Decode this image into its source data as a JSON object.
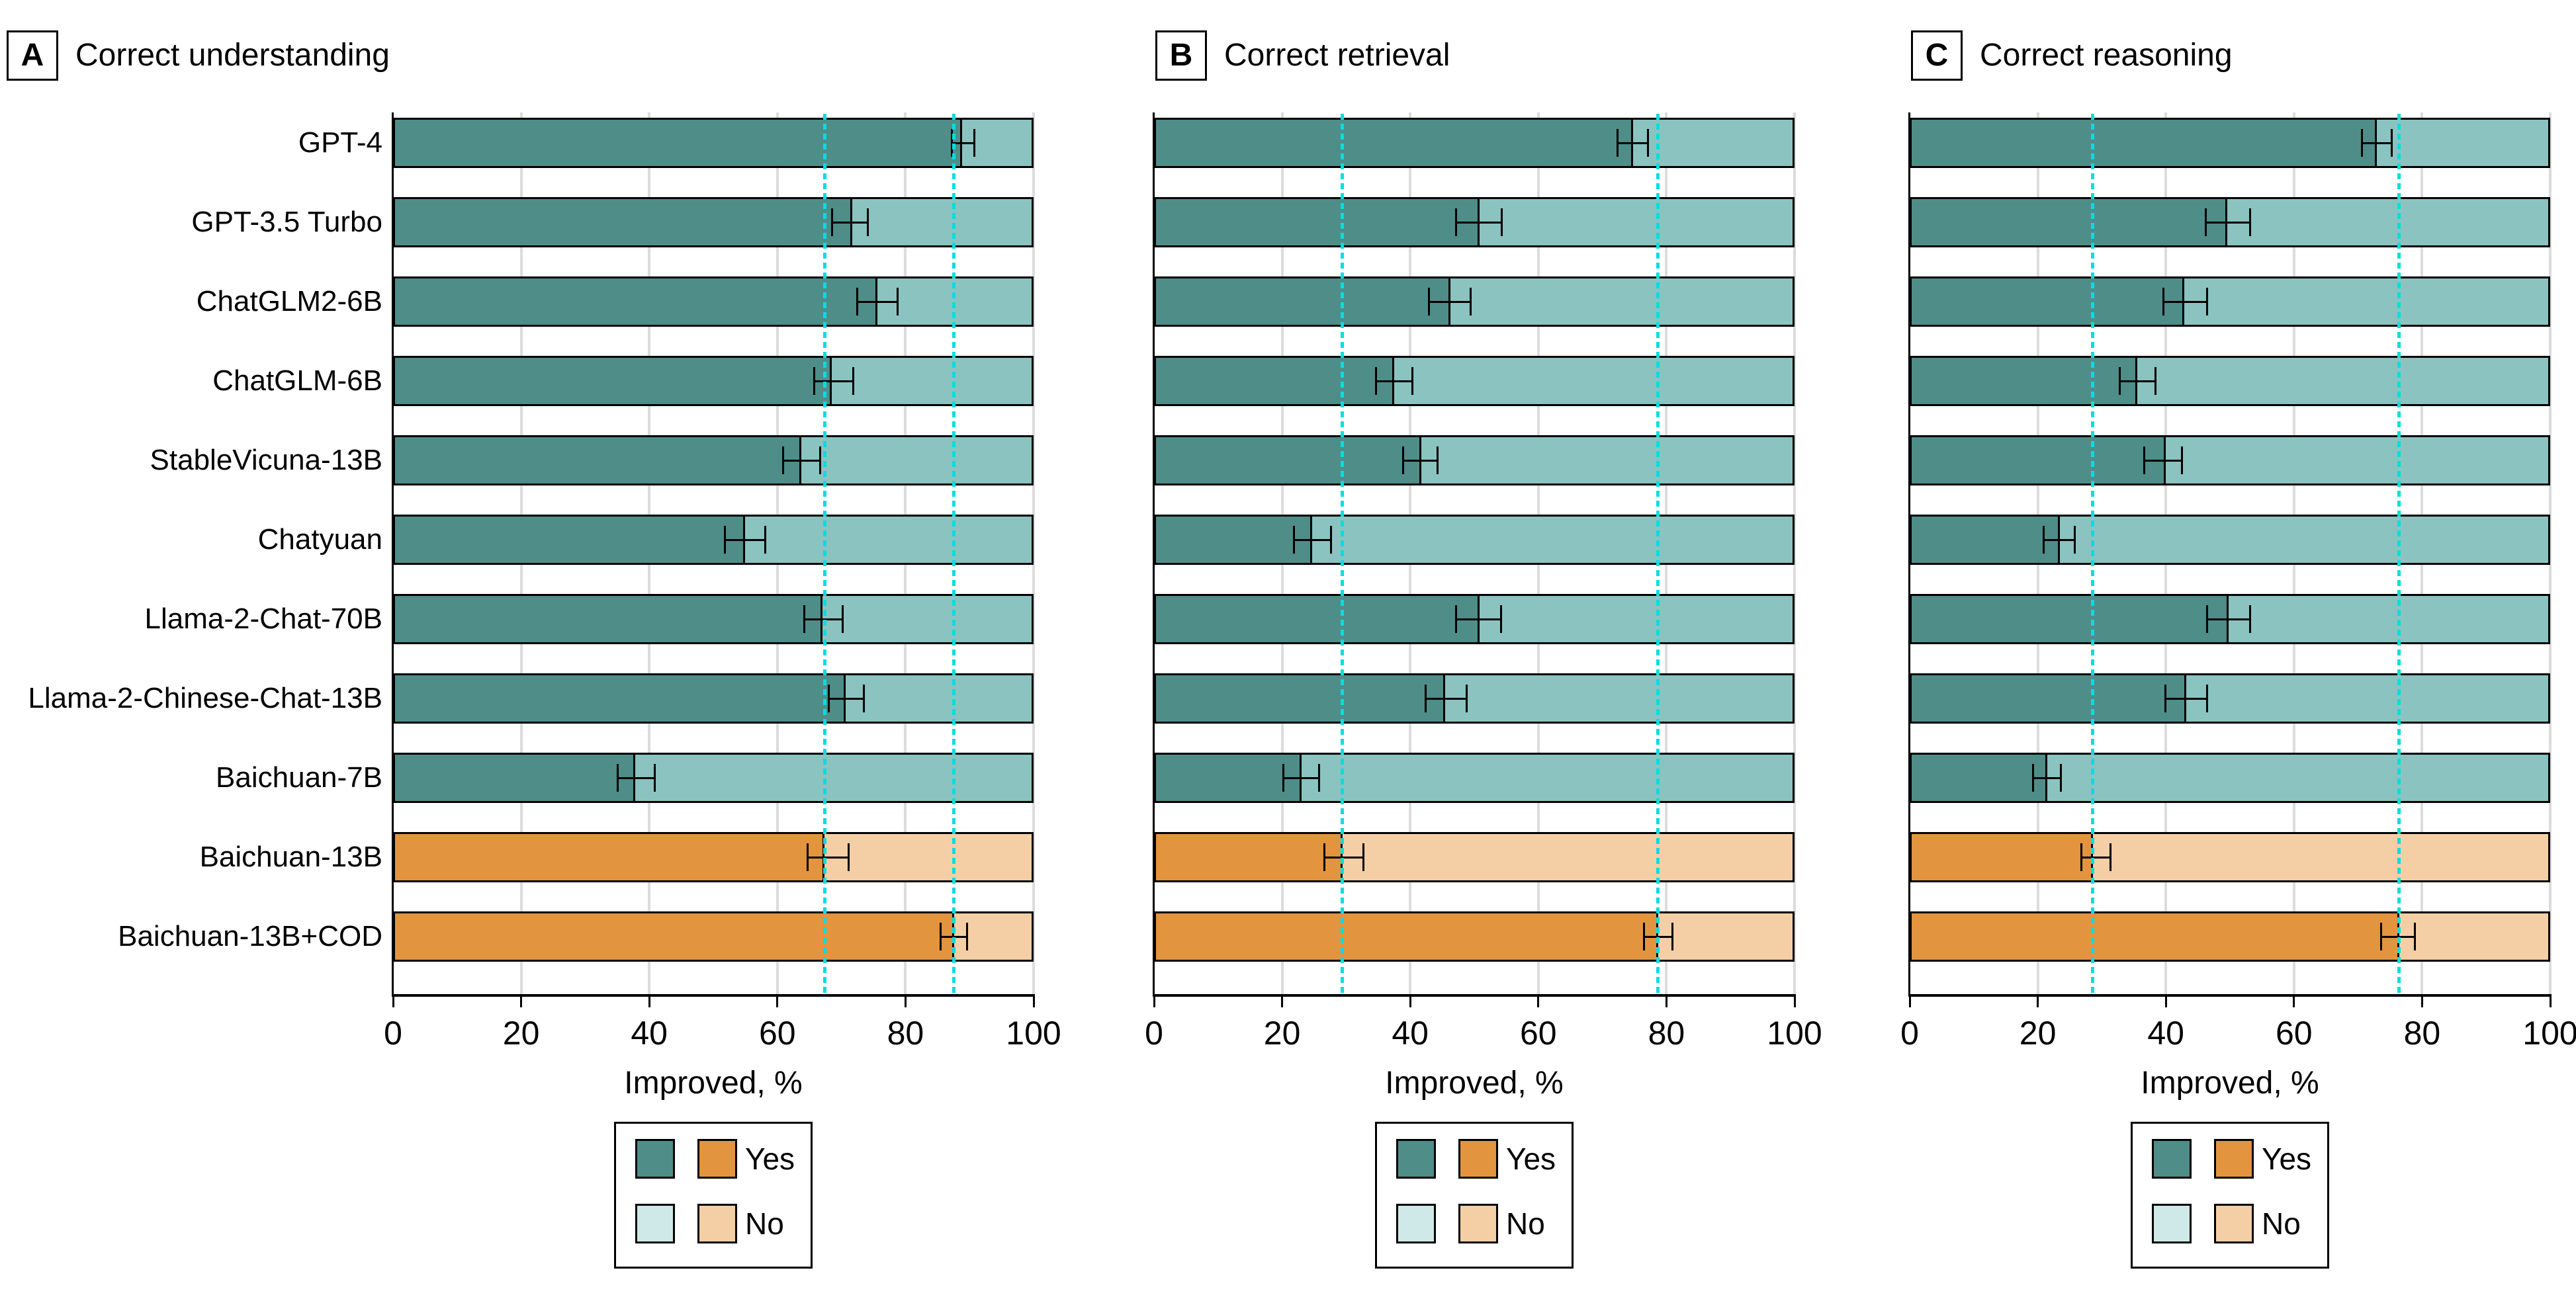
{
  "colors": {
    "teal_yes": "#4f8d89",
    "teal_no": "#8bc3c0",
    "teal_no_legend": "#cfe9e8",
    "orange_yes": "#e2943f",
    "orange_no": "#f4cfa5",
    "reference_cyan": "#06dede",
    "gridline": "#dcdcdc",
    "axis": "#000000",
    "background": "#ffffff"
  },
  "chart_data": [
    {
      "type": "bar",
      "orientation": "horizontal",
      "stacked": true,
      "panel": "A",
      "title": "Correct understanding",
      "xlabel": "Improved, %",
      "xlim": [
        0,
        100
      ],
      "xticks": [
        0,
        20,
        40,
        60,
        80,
        100
      ],
      "grid": "vertical-light",
      "categories": [
        "GPT-4",
        "GPT-3.5 Turbo",
        "ChatGLM2-6B",
        "ChatGLM-6B",
        "StableVicuna-13B",
        "Chatyuan",
        "Llama-2-Chat-70B",
        "Llama-2-Chinese-Chat-13B",
        "Baichuan-7B",
        "Baichuan-13B",
        "Baichuan-13B+COD"
      ],
      "series": [
        {
          "name": "Yes",
          "values": [
            88.8,
            71.7,
            75.6,
            68.5,
            63.7,
            55.0,
            67.0,
            70.7,
            37.8,
            67.4,
            87.6
          ]
        },
        {
          "name": "No",
          "values": [
            11.2,
            28.3,
            24.4,
            31.5,
            36.3,
            45.0,
            33.0,
            29.3,
            62.2,
            32.6,
            12.4
          ]
        }
      ],
      "ci": [
        [
          87.2,
          90.8
        ],
        [
          68.5,
          74.1
        ],
        [
          72.5,
          78.8
        ],
        [
          65.8,
          71.8
        ],
        [
          60.9,
          66.7
        ],
        [
          51.8,
          58.1
        ],
        [
          64.2,
          70.2
        ],
        [
          68.0,
          73.5
        ],
        [
          35.1,
          40.9
        ],
        [
          64.7,
          71.1
        ],
        [
          85.5,
          89.6
        ]
      ],
      "bar_groups": [
        "teal",
        "teal",
        "teal",
        "teal",
        "teal",
        "teal",
        "teal",
        "teal",
        "teal",
        "orange",
        "orange"
      ],
      "reference_lines": [
        67.4,
        87.6
      ],
      "legend": {
        "entries": [
          "Yes",
          "No"
        ],
        "position": "bottom"
      }
    },
    {
      "type": "bar",
      "orientation": "horizontal",
      "stacked": true,
      "panel": "B",
      "title": "Correct retrieval",
      "xlabel": "Improved, %",
      "xlim": [
        0,
        100
      ],
      "xticks": [
        0,
        20,
        40,
        60,
        80,
        100
      ],
      "grid": "vertical-light",
      "categories": [
        "GPT-4",
        "GPT-3.5 Turbo",
        "ChatGLM2-6B",
        "ChatGLM-6B",
        "StableVicuna-13B",
        "Chatyuan",
        "Llama-2-Chat-70B",
        "Llama-2-Chinese-Chat-13B",
        "Baichuan-7B",
        "Baichuan-13B",
        "Baichuan-13B+COD"
      ],
      "series": [
        {
          "name": "Yes",
          "values": [
            74.8,
            50.8,
            46.3,
            37.5,
            41.7,
            24.7,
            50.8,
            45.5,
            23.0,
            29.4,
            78.7
          ]
        },
        {
          "name": "No",
          "values": [
            25.2,
            49.2,
            53.7,
            62.5,
            58.3,
            75.3,
            49.2,
            54.5,
            77.0,
            70.6,
            21.3
          ]
        }
      ],
      "ci": [
        [
          72.4,
          77.1
        ],
        [
          47.2,
          54.3
        ],
        [
          42.9,
          49.4
        ],
        [
          34.7,
          40.3
        ],
        [
          38.9,
          44.3
        ],
        [
          21.8,
          27.6
        ],
        [
          47.2,
          54.2
        ],
        [
          42.4,
          48.8
        ],
        [
          20.2,
          25.8
        ],
        [
          26.6,
          32.7
        ],
        [
          76.5,
          80.9
        ]
      ],
      "bar_groups": [
        "teal",
        "teal",
        "teal",
        "teal",
        "teal",
        "teal",
        "teal",
        "teal",
        "teal",
        "orange",
        "orange"
      ],
      "reference_lines": [
        29.4,
        78.7
      ],
      "legend": {
        "entries": [
          "Yes",
          "No"
        ],
        "position": "bottom"
      }
    },
    {
      "type": "bar",
      "orientation": "horizontal",
      "stacked": true,
      "panel": "C",
      "title": "Correct reasoning",
      "xlabel": "Improved, %",
      "xlim": [
        0,
        100
      ],
      "xticks": [
        0,
        20,
        40,
        60,
        80,
        100
      ],
      "grid": "vertical-light",
      "categories": [
        "GPT-4",
        "GPT-3.5 Turbo",
        "ChatGLM2-6B",
        "ChatGLM-6B",
        "StableVicuna-13B",
        "Chatyuan",
        "Llama-2-Chat-70B",
        "Llama-2-Chinese-Chat-13B",
        "Baichuan-7B",
        "Baichuan-13B",
        "Baichuan-13B+COD"
      ],
      "series": [
        {
          "name": "Yes",
          "values": [
            72.9,
            49.6,
            42.9,
            35.5,
            40.0,
            23.4,
            49.8,
            43.2,
            21.5,
            28.6,
            76.4
          ]
        },
        {
          "name": "No",
          "values": [
            27.1,
            50.4,
            57.1,
            64.5,
            60.0,
            76.6,
            50.2,
            56.8,
            78.5,
            71.4,
            23.6
          ]
        }
      ],
      "ci": [
        [
          70.6,
          75.3
        ],
        [
          46.2,
          53.2
        ],
        [
          39.6,
          46.4
        ],
        [
          32.8,
          38.4
        ],
        [
          36.6,
          42.5
        ],
        [
          20.9,
          25.8
        ],
        [
          46.4,
          53.1
        ],
        [
          39.9,
          46.4
        ],
        [
          19.3,
          23.6
        ],
        [
          26.8,
          31.4
        ],
        [
          73.6,
          78.9
        ]
      ],
      "bar_groups": [
        "teal",
        "teal",
        "teal",
        "teal",
        "teal",
        "teal",
        "teal",
        "teal",
        "teal",
        "orange",
        "orange"
      ],
      "reference_lines": [
        28.6,
        76.4
      ],
      "legend": {
        "entries": [
          "Yes",
          "No"
        ],
        "position": "bottom"
      }
    }
  ]
}
